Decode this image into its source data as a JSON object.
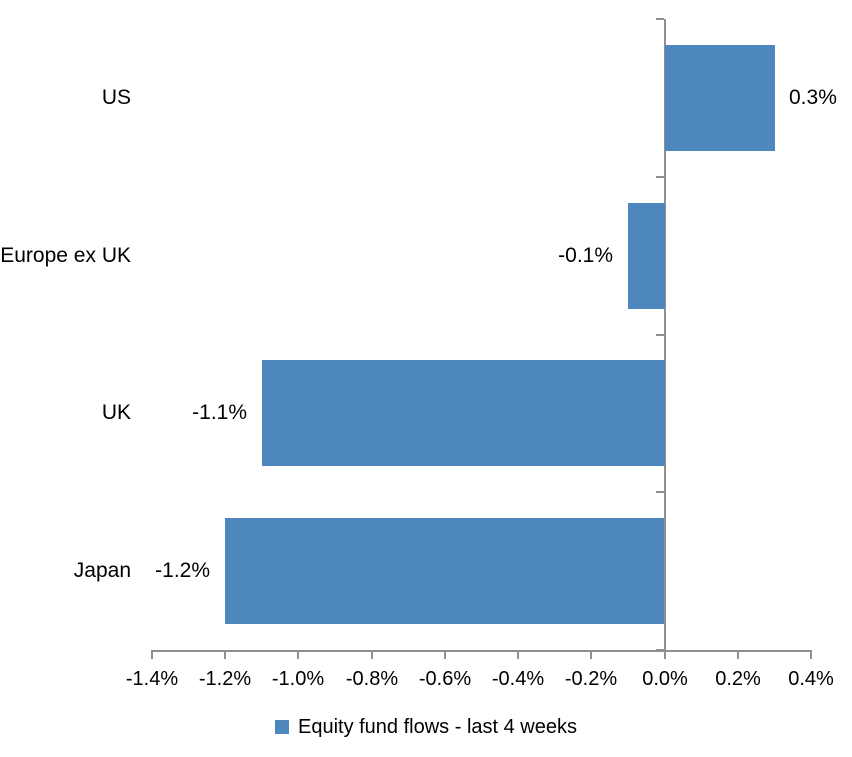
{
  "chart_data": {
    "type": "bar",
    "orientation": "horizontal",
    "title": "",
    "categories": [
      "US",
      "Europe ex UK",
      "UK",
      "Japan"
    ],
    "series": [
      {
        "name": "Equity fund flows - last 4 weeks",
        "values": [
          0.3,
          -0.1,
          -1.1,
          -1.2
        ],
        "data_labels": [
          "0.3%",
          "-0.1%",
          "-1.1%",
          "-1.2%"
        ]
      }
    ],
    "value_unit": "%",
    "xlim": [
      -1.4,
      0.4
    ],
    "x_tick_step": 0.2,
    "x_tick_labels": [
      "-1.4%",
      "-1.2%",
      "-1.0%",
      "-0.8%",
      "-0.6%",
      "-0.4%",
      "-0.2%",
      "0.0%",
      "0.2%",
      "0.4%"
    ],
    "grid": false,
    "legend": {
      "position": "bottom",
      "entries": [
        "Equity fund flows - last 4 weeks"
      ]
    },
    "colors": {
      "bar": "#4E87BE",
      "axis": "#8F8F8F",
      "text": "#000000"
    }
  }
}
